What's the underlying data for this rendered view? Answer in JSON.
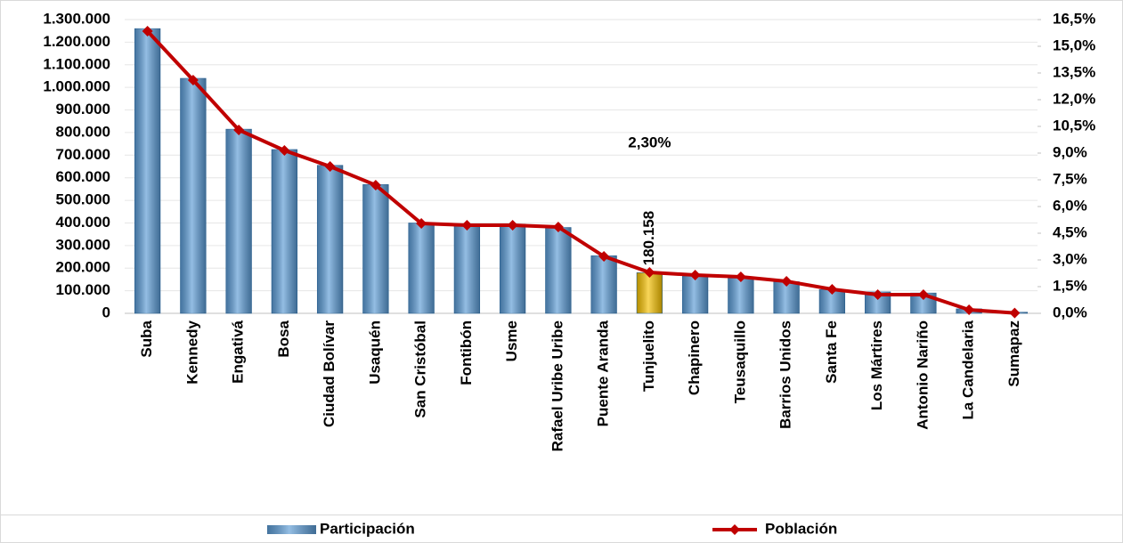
{
  "chart_data": {
    "type": "bar_line",
    "categories": [
      "Suba",
      "Kennedy",
      "Engativá",
      "Bosa",
      "Ciudad Bolívar",
      "Usaquén",
      "San Cristóbal",
      "Fontibón",
      "Usme",
      "Rafael Uribe Uribe",
      "Puente Aranda",
      "Tunjuelito",
      "Chapinero",
      "Teusaquillo",
      "Barrios Unidos",
      "Santa Fe",
      "Los Mártires",
      "Antonio Nariño",
      "La Candelaria",
      "Sumapaz"
    ],
    "series": [
      {
        "name": "Participación",
        "type": "bar",
        "color": "#5b9bd5",
        "colors": [
          "#5b9bd5",
          "#5b9bd5",
          "#5b9bd5",
          "#5b9bd5",
          "#5b9bd5",
          "#5b9bd5",
          "#5b9bd5",
          "#5b9bd5",
          "#5b9bd5",
          "#5b9bd5",
          "#5b9bd5",
          "#f5c000",
          "#5b9bd5",
          "#5b9bd5",
          "#5b9bd5",
          "#5b9bd5",
          "#5b9bd5",
          "#5b9bd5",
          "#5b9bd5",
          "#5b9bd5"
        ],
        "values": [
          1260000,
          1040000,
          815000,
          725000,
          655000,
          570000,
          400000,
          395000,
          395000,
          380000,
          255000,
          180158,
          165000,
          160000,
          140000,
          105000,
          95000,
          90000,
          20000,
          5000
        ],
        "value_labels": [
          null,
          null,
          null,
          null,
          null,
          null,
          null,
          null,
          null,
          null,
          null,
          "180.158",
          null,
          null,
          null,
          null,
          null,
          null,
          null,
          null
        ]
      },
      {
        "name": "Población",
        "type": "line",
        "axis": "y2",
        "color": "#c00000",
        "values": [
          15.85,
          13.1,
          10.3,
          9.15,
          8.25,
          7.2,
          5.05,
          4.95,
          4.95,
          4.85,
          3.2,
          2.3,
          2.15,
          2.05,
          1.8,
          1.35,
          1.05,
          1.05,
          0.2,
          0.02
        ],
        "value_labels": [
          null,
          null,
          null,
          null,
          null,
          null,
          null,
          null,
          null,
          null,
          null,
          "2,30%",
          null,
          null,
          null,
          null,
          null,
          null,
          null,
          null
        ]
      }
    ],
    "ylim": [
      0,
      1300000
    ],
    "yticks": [
      0,
      {
        "value": 100000,
        "label": "100.000"
      },
      {
        "value": 200000,
        "label": "200.000"
      },
      {
        "value": 300000,
        "label": "300.000"
      },
      {
        "value": 400000,
        "label": "400.000"
      },
      {
        "value": 500000,
        "label": "500.000"
      },
      {
        "value": 600000,
        "label": "600.000"
      },
      {
        "value": 700000,
        "label": "700.000"
      },
      {
        "value": 800000,
        "label": "800.000"
      },
      {
        "value": 900000,
        "label": "900.000"
      },
      {
        "value": 1000000,
        "label": "1.000.000"
      },
      {
        "value": 1100000,
        "label": "1.100.000"
      },
      {
        "value": 1200000,
        "label": "1.200.000"
      },
      {
        "value": 1300000,
        "label": "1.300.000"
      }
    ],
    "y2lim": [
      0,
      16.5
    ],
    "y2ticks": [
      {
        "value": 0,
        "label": "0,0%"
      },
      {
        "value": 1.5,
        "label": "1,5%"
      },
      {
        "value": 3,
        "label": "3,0%"
      },
      {
        "value": 4.5,
        "label": "4,5%"
      },
      {
        "value": 6,
        "label": "6,0%"
      },
      {
        "value": 7.5,
        "label": "7,5%"
      },
      {
        "value": 9,
        "label": "9,0%"
      },
      {
        "value": 10.5,
        "label": "10,5%"
      },
      {
        "value": 12,
        "label": "12,0%"
      },
      {
        "value": 13.5,
        "label": "13,5%"
      },
      {
        "value": 15,
        "label": "15,0%"
      },
      {
        "value": 16.5,
        "label": "16,5%"
      }
    ],
    "grid": true
  }
}
